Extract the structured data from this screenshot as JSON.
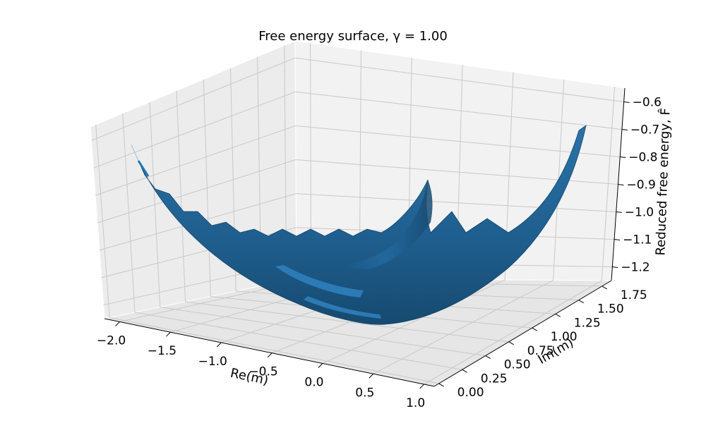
{
  "chart_data": {
    "type": "surface",
    "title": "Free energy surface, γ = 1.00",
    "xlabel": "Re(m)",
    "ylabel": "Im(m)",
    "zlabel": "Reduced free energy, F̂",
    "x_ticks": [
      "−2.0",
      "−1.5",
      "−1.0",
      "−0.5",
      "0.0",
      "0.5",
      "1.0"
    ],
    "y_ticks": [
      "0.00",
      "0.25",
      "0.50",
      "0.75",
      "1.00",
      "1.25",
      "1.50",
      "1.75"
    ],
    "z_ticks": [
      "−0.6",
      "−0.7",
      "−0.8",
      "−0.9",
      "−1.0",
      "−1.1",
      "−1.2"
    ],
    "xlim": [
      -2.15,
      1.1
    ],
    "ylim": [
      -0.05,
      1.85
    ],
    "zlim": [
      -1.25,
      -0.55
    ],
    "surface_color": "#1f5f8f",
    "pane_color": "#f2f2f2",
    "grid": true
  }
}
